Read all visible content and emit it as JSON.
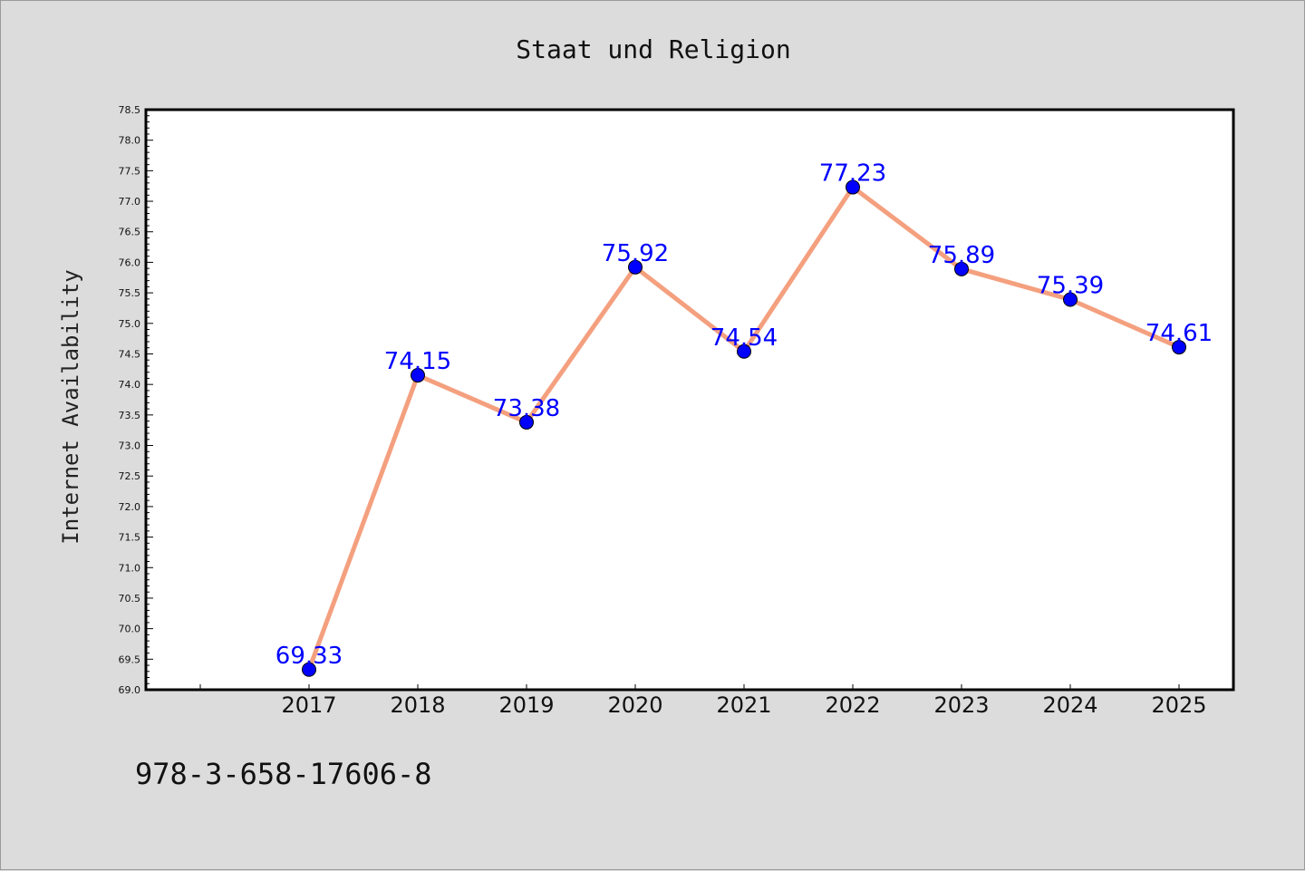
{
  "chart_data": {
    "type": "line",
    "title": "Staat und Religion",
    "xlabel": "",
    "ylabel": "Internet Availability",
    "categories": [
      "2017",
      "2018",
      "2019",
      "2020",
      "2021",
      "2022",
      "2023",
      "2024",
      "2025"
    ],
    "series": [
      {
        "values": [
          69.33,
          74.15,
          73.38,
          75.92,
          74.54,
          77.23,
          75.89,
          75.39,
          74.61
        ]
      }
    ],
    "data_labels": [
      "69.33",
      "74.15",
      "73.38",
      "75.92",
      "74.54",
      "77.23",
      "75.89",
      "75.39",
      "74.61"
    ],
    "ylim": [
      69.0,
      78.5
    ],
    "yticks": [
      "69.0",
      "69.5",
      "70.0",
      "70.5",
      "71.0",
      "71.5",
      "72.0",
      "72.5",
      "73.0",
      "73.5",
      "74.0",
      "74.5",
      "75.0",
      "75.5",
      "76.0",
      "76.5",
      "77.0",
      "77.5",
      "78.0",
      "78.5"
    ],
    "grid": false,
    "line_color": "#f4a07f",
    "marker_color": "#0000ff",
    "label_color": "#0000ff"
  },
  "footnote": "978-3-658-17606-8",
  "colors": {
    "background": "#dcdcdc",
    "plot_area": "#ffffff",
    "axis": "#000000"
  }
}
